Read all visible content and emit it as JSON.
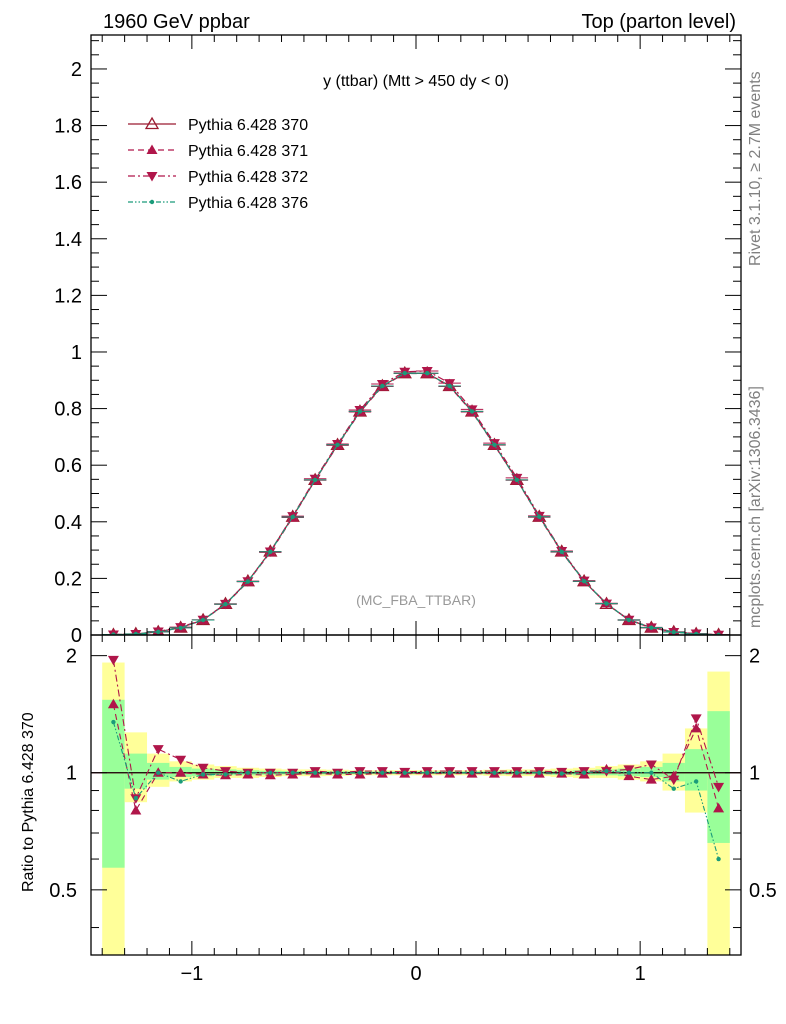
{
  "header": {
    "left": "1960 GeV ppbar",
    "right": "Top (parton level)"
  },
  "side": {
    "rivet": "Rivet 3.1.10, ≥ 2.7M events",
    "mcplots": "mcplots.cern.ch [arXiv:1306.3436]"
  },
  "chart_data": [
    {
      "type": "line",
      "title": "y (ttbar) (Mtt > 450 dy < 0)",
      "watermark": "(MC_FBA_TTBAR)",
      "xlim": [
        -1.45,
        1.45
      ],
      "ylim": [
        0,
        2.12
      ],
      "yticks": [
        "0",
        "0.2",
        "0.4",
        "0.6",
        "0.8",
        "1",
        "1.2",
        "1.4",
        "1.6",
        "1.8",
        "2"
      ],
      "legend_position": "top-left",
      "x": [
        -1.35,
        -1.25,
        -1.15,
        -1.05,
        -0.95,
        -0.85,
        -0.75,
        -0.65,
        -0.55,
        -0.45,
        -0.35,
        -0.25,
        -0.15,
        -0.05,
        0.05,
        0.15,
        0.25,
        0.35,
        0.45,
        0.55,
        0.65,
        0.75,
        0.85,
        0.95,
        1.05,
        1.15,
        1.25,
        1.35
      ],
      "series": [
        {
          "name": "Pythia 6.428 370",
          "color": "#9b1b30",
          "marker": "triangle-open",
          "line": "solid",
          "values": [
            0.001,
            0.004,
            0.011,
            0.026,
            0.053,
            0.11,
            0.19,
            0.295,
            0.418,
            0.548,
            0.672,
            0.79,
            0.88,
            0.925,
            0.925,
            0.88,
            0.79,
            0.672,
            0.548,
            0.418,
            0.295,
            0.19,
            0.11,
            0.053,
            0.026,
            0.011,
            0.004,
            0.001
          ]
        },
        {
          "name": "Pythia 6.428 371",
          "color": "#b0164a",
          "marker": "triangle-up",
          "line": "dashed",
          "values": [
            0.0015,
            0.0032,
            0.011,
            0.026,
            0.053,
            0.108,
            0.188,
            0.292,
            0.415,
            0.547,
            0.67,
            0.788,
            0.878,
            0.924,
            0.924,
            0.878,
            0.788,
            0.671,
            0.547,
            0.416,
            0.293,
            0.189,
            0.112,
            0.052,
            0.025,
            0.011,
            0.005,
            0.0008
          ]
        },
        {
          "name": "Pythia 6.428 372",
          "color": "#b0164a",
          "marker": "triangle-down",
          "line": "dashdot",
          "values": [
            0.0019,
            0.0034,
            0.0125,
            0.028,
            0.054,
            0.11,
            0.19,
            0.295,
            0.42,
            0.552,
            0.675,
            0.795,
            0.887,
            0.93,
            0.933,
            0.89,
            0.797,
            0.678,
            0.555,
            0.421,
            0.297,
            0.192,
            0.111,
            0.054,
            0.027,
            0.0105,
            0.0054,
            0.0009
          ]
        },
        {
          "name": "Pythia 6.428 376",
          "color": "#1a9b7a",
          "marker": "dot",
          "line": "dashdotdot",
          "values": [
            0.0016,
            0.0035,
            0.011,
            0.025,
            0.053,
            0.109,
            0.189,
            0.294,
            0.417,
            0.548,
            0.672,
            0.79,
            0.88,
            0.925,
            0.925,
            0.88,
            0.79,
            0.672,
            0.548,
            0.418,
            0.294,
            0.19,
            0.111,
            0.053,
            0.026,
            0.01,
            0.0038,
            0.0006
          ]
        }
      ]
    },
    {
      "type": "line",
      "ylabel": "Ratio to Pythia 6.428 370",
      "xlim": [
        -1.45,
        1.45
      ],
      "ylim": [
        0.34,
        2.26
      ],
      "yscale": "log",
      "xticks": [
        "−1",
        "0",
        "1"
      ],
      "yticks": [
        "0.5",
        "1",
        "2"
      ],
      "band_yellow": [
        [
          0.32,
          1.92
        ],
        [
          0.84,
          1.27
        ],
        [
          0.92,
          1.12
        ],
        [
          0.95,
          1.07
        ],
        [
          0.96,
          1.05
        ],
        [
          0.97,
          1.04
        ],
        [
          0.97,
          1.03
        ],
        [
          0.975,
          1.025
        ],
        [
          0.98,
          1.02
        ],
        [
          0.98,
          1.02
        ],
        [
          0.982,
          1.018
        ],
        [
          0.985,
          1.015
        ],
        [
          0.985,
          1.015
        ],
        [
          0.985,
          1.015
        ],
        [
          0.985,
          1.015
        ],
        [
          0.985,
          1.015
        ],
        [
          0.985,
          1.015
        ],
        [
          0.982,
          1.018
        ],
        [
          0.98,
          1.02
        ],
        [
          0.98,
          1.02
        ],
        [
          0.975,
          1.025
        ],
        [
          0.97,
          1.03
        ],
        [
          0.97,
          1.04
        ],
        [
          0.96,
          1.05
        ],
        [
          0.95,
          1.07
        ],
        [
          0.9,
          1.12
        ],
        [
          0.79,
          1.3
        ],
        [
          0.32,
          1.82
        ]
      ],
      "band_green": [
        [
          0.57,
          1.54
        ],
        [
          0.91,
          1.12
        ],
        [
          0.96,
          1.06
        ],
        [
          0.975,
          1.035
        ],
        [
          0.98,
          1.025
        ],
        [
          0.985,
          1.02
        ],
        [
          0.985,
          1.015
        ],
        [
          0.988,
          1.012
        ],
        [
          0.99,
          1.01
        ],
        [
          0.99,
          1.01
        ],
        [
          0.991,
          1.009
        ],
        [
          0.992,
          1.008
        ],
        [
          0.992,
          1.008
        ],
        [
          0.992,
          1.008
        ],
        [
          0.992,
          1.008
        ],
        [
          0.992,
          1.008
        ],
        [
          0.992,
          1.008
        ],
        [
          0.991,
          1.009
        ],
        [
          0.99,
          1.01
        ],
        [
          0.99,
          1.01
        ],
        [
          0.988,
          1.012
        ],
        [
          0.985,
          1.015
        ],
        [
          0.985,
          1.02
        ],
        [
          0.98,
          1.025
        ],
        [
          0.975,
          1.035
        ],
        [
          0.95,
          1.06
        ],
        [
          0.9,
          1.15
        ],
        [
          0.66,
          1.44
        ]
      ],
      "series": [
        {
          "name": "Pythia 6.428 371",
          "color": "#b0164a",
          "marker": "triangle-up",
          "line": "dashed",
          "values": [
            1.5,
            0.8,
            1.0,
            1.0,
            0.99,
            0.985,
            0.99,
            0.985,
            0.99,
            0.995,
            0.99,
            0.99,
            0.995,
            0.995,
            0.995,
            0.995,
            0.995,
            0.995,
            0.995,
            0.995,
            0.995,
            0.99,
            1.02,
            0.98,
            0.96,
            0.98,
            1.3,
            0.81
          ]
        },
        {
          "name": "Pythia 6.428 372",
          "color": "#b0164a",
          "marker": "triangle-down",
          "line": "dashdot",
          "values": [
            1.95,
            0.86,
            1.15,
            1.08,
            1.03,
            1.01,
            1.0,
            1.0,
            1.0,
            1.01,
            1.0,
            1.01,
            1.01,
            1.005,
            1.01,
            1.01,
            1.01,
            1.01,
            1.01,
            1.01,
            1.005,
            1.01,
            1.01,
            1.02,
            1.05,
            0.96,
            1.38,
            0.92
          ]
        },
        {
          "name": "Pythia 6.428 376",
          "color": "#1a9b7a",
          "marker": "dot",
          "line": "dashdotdot",
          "values": [
            1.35,
            0.86,
            1.0,
            0.95,
            0.99,
            0.99,
            1.0,
            1.0,
            1.0,
            1.0,
            1.0,
            1.0,
            1.0,
            1.0,
            1.0,
            1.0,
            1.0,
            1.0,
            1.0,
            1.0,
            0.995,
            1.0,
            1.01,
            1.0,
            1.0,
            0.91,
            0.95,
            0.6
          ]
        }
      ]
    }
  ]
}
